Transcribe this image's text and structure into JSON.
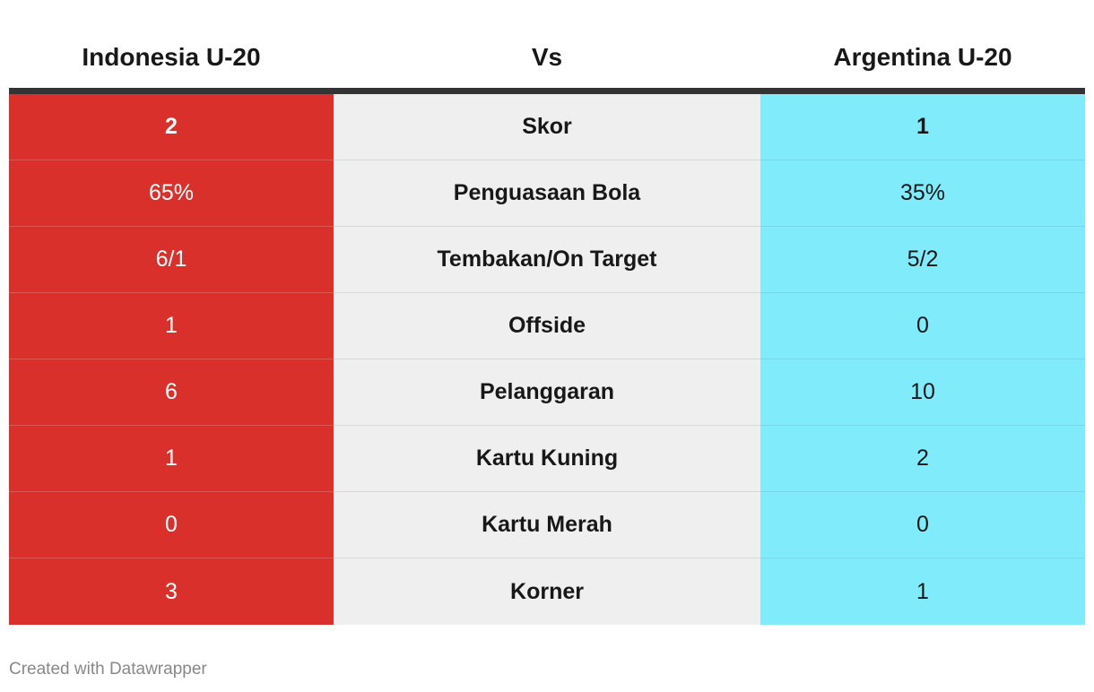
{
  "header": {
    "left_team": "Indonesia U-20",
    "middle": "Vs",
    "right_team": "Argentina U-20"
  },
  "colors": {
    "left_team": "#d9302b",
    "right_team": "#80ebfb",
    "middle_column": "#efefef",
    "header_rule": "#333333"
  },
  "chart_data": {
    "type": "table",
    "columns": [
      "Indonesia U-20",
      "Vs",
      "Argentina U-20"
    ],
    "rows": [
      {
        "stat": "Skor",
        "left": "2",
        "right": "1"
      },
      {
        "stat": "Penguasaan Bola",
        "left": "65%",
        "right": "35%"
      },
      {
        "stat": "Tembakan/On Target",
        "left": "6/1",
        "right": "5/2"
      },
      {
        "stat": "Offside",
        "left": "1",
        "right": "0"
      },
      {
        "stat": "Pelanggaran",
        "left": "6",
        "right": "10"
      },
      {
        "stat": "Kartu Kuning",
        "left": "1",
        "right": "2"
      },
      {
        "stat": "Kartu Merah",
        "left": "0",
        "right": "0"
      },
      {
        "stat": "Korner",
        "left": "3",
        "right": "1"
      }
    ]
  },
  "footer": {
    "credit": "Created with Datawrapper"
  }
}
